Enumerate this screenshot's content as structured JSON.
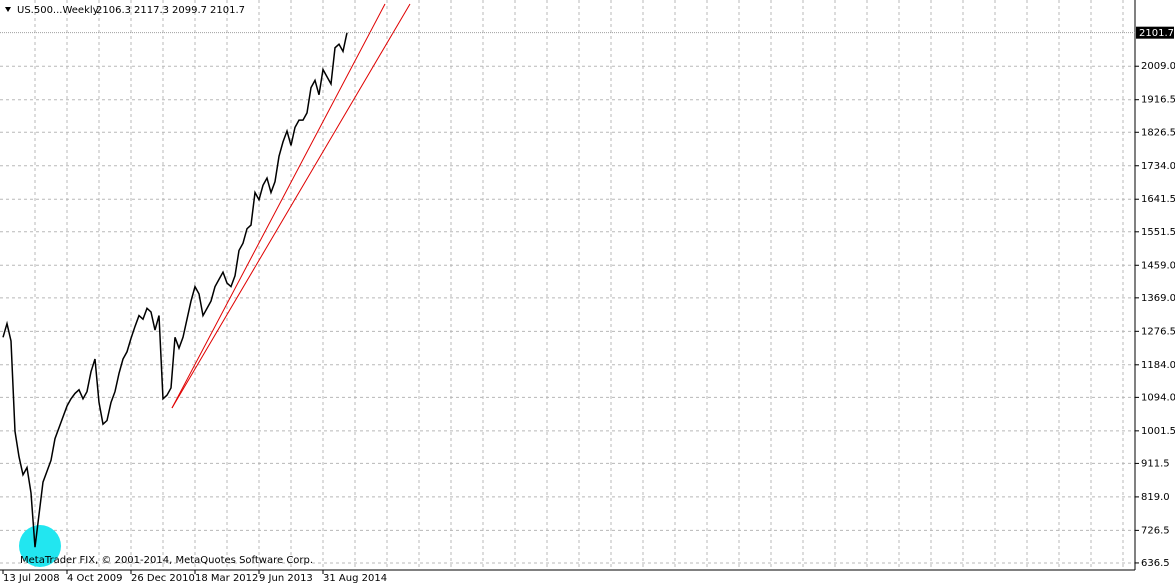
{
  "chart_data": {
    "type": "line",
    "title": "US.500...Weekly",
    "ohlc": [
      2106.3,
      2117.3,
      2099.7,
      2101.7
    ],
    "copyright": "MetaTrader FIX, © 2001-2014, MetaQuotes Software Corp.",
    "current_price": 2101.7,
    "color": "#000000",
    "grid": true,
    "categories": [
      "13 Jul 2008",
      null,
      null,
      null,
      null,
      null,
      null,
      null,
      null,
      null,
      null,
      null,
      null,
      null,
      null,
      null,
      "4 Oct 2009",
      null,
      null,
      null,
      null,
      null,
      null,
      null,
      null,
      null,
      null,
      null,
      null,
      null,
      null,
      null,
      "26 Dec 2010",
      null,
      null,
      null,
      null,
      null,
      null,
      null,
      null,
      null,
      null,
      null,
      null,
      null,
      null,
      null,
      "18 Mar 2012",
      null,
      null,
      null,
      null,
      null,
      null,
      null,
      null,
      null,
      null,
      null,
      null,
      null,
      null,
      null,
      "9 Jun 2013",
      null,
      null,
      null,
      null,
      null,
      null,
      null,
      null,
      null,
      null,
      null,
      null,
      null,
      null,
      null,
      "31 Aug 2014",
      null,
      null,
      null,
      null,
      null,
      null
    ],
    "values": [
      1260,
      1298,
      1250,
      1000,
      930,
      880,
      900,
      830,
      680,
      770,
      860,
      890,
      920,
      980,
      1010,
      1040,
      1070,
      1090,
      1105,
      1115,
      1090,
      1110,
      1165,
      1200,
      1080,
      1020,
      1030,
      1080,
      1110,
      1160,
      1200,
      1220,
      1257,
      1290,
      1320,
      1310,
      1340,
      1330,
      1280,
      1320,
      1090,
      1100,
      1120,
      1260,
      1230,
      1260,
      1310,
      1360,
      1400,
      1380,
      1320,
      1340,
      1360,
      1400,
      1420,
      1440,
      1410,
      1400,
      1430,
      1500,
      1520,
      1560,
      1570,
      1660,
      1640,
      1680,
      1700,
      1660,
      1690,
      1760,
      1800,
      1830,
      1790,
      1840,
      1860,
      1860,
      1880,
      1950,
      1970,
      1930,
      2000,
      1980,
      1960,
      2060,
      2070,
      2050,
      2101.7
    ],
    "ylim": [
      617,
      2192
    ],
    "yticks": [
      636.5,
      726.5,
      {
        "value": 819,
        "label": "819.0"
      },
      911.5,
      1001.5,
      {
        "value": 1094,
        "label": "1094.0"
      },
      {
        "value": 1184,
        "label": "1184.0"
      },
      1276.5,
      {
        "value": 1369,
        "label": "1369.0"
      },
      {
        "value": 1459,
        "label": "1459.0"
      },
      1551.5,
      1641.5,
      {
        "value": 1734,
        "label": "1734.0"
      },
      1826.5,
      1916.5,
      {
        "value": 2009,
        "label": "2009.0"
      }
    ]
  }
}
